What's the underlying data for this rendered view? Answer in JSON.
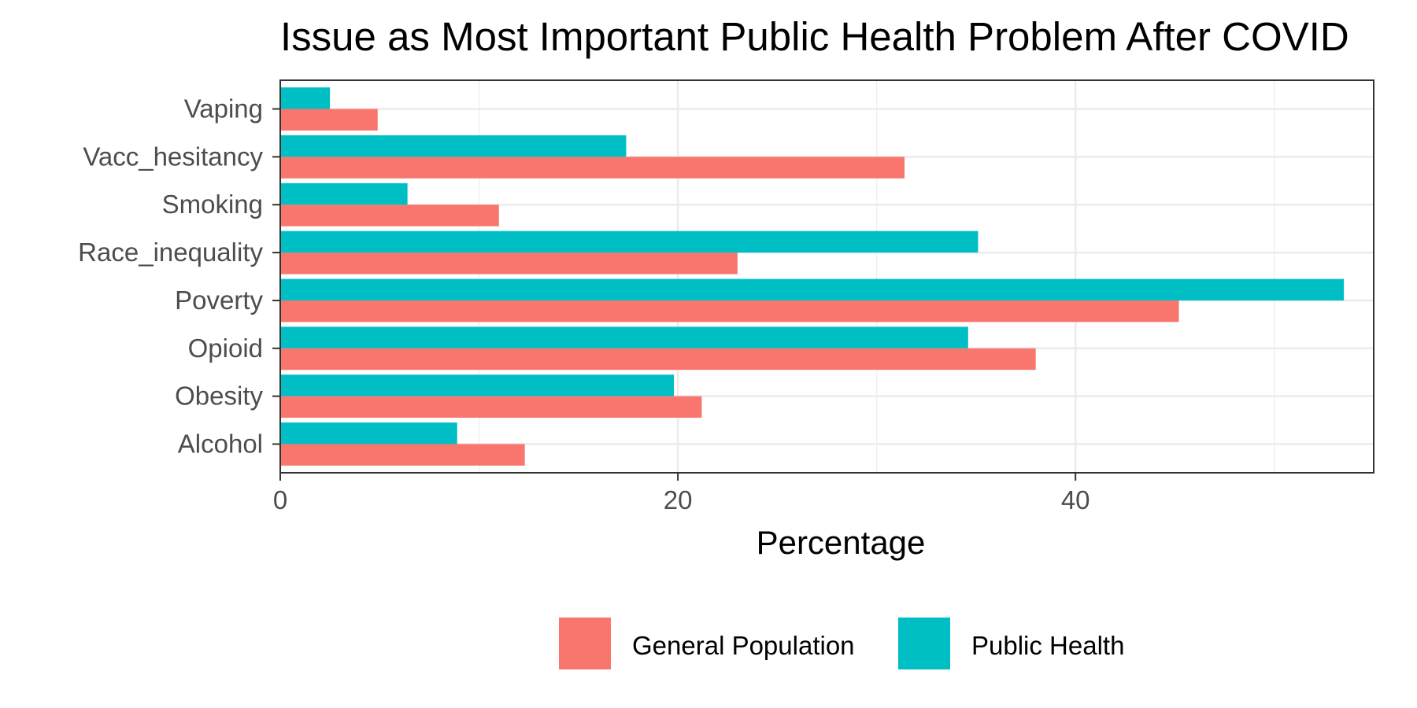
{
  "chart_data": {
    "type": "bar",
    "orientation": "horizontal",
    "title": "Issue as Most Important Public Health Problem After COVID",
    "xlabel": "Percentage",
    "ylabel": "",
    "xlim": [
      0,
      55
    ],
    "x_ticks": [
      0,
      20,
      40
    ],
    "categories": [
      "Alcohol",
      "Obesity",
      "Opioid",
      "Poverty",
      "Race_inequality",
      "Smoking",
      "Vacc_hesitancy",
      "Vaping"
    ],
    "series": [
      {
        "name": "General Population",
        "color": "#F8766D",
        "values": [
          12.3,
          21.2,
          38.0,
          45.2,
          23.0,
          11.0,
          31.4,
          4.9
        ]
      },
      {
        "name": "Public Health",
        "color": "#00BFC4",
        "values": [
          8.9,
          19.8,
          34.6,
          53.5,
          35.1,
          6.4,
          17.4,
          2.5
        ]
      }
    ],
    "grid": true,
    "legend_position": "bottom"
  }
}
